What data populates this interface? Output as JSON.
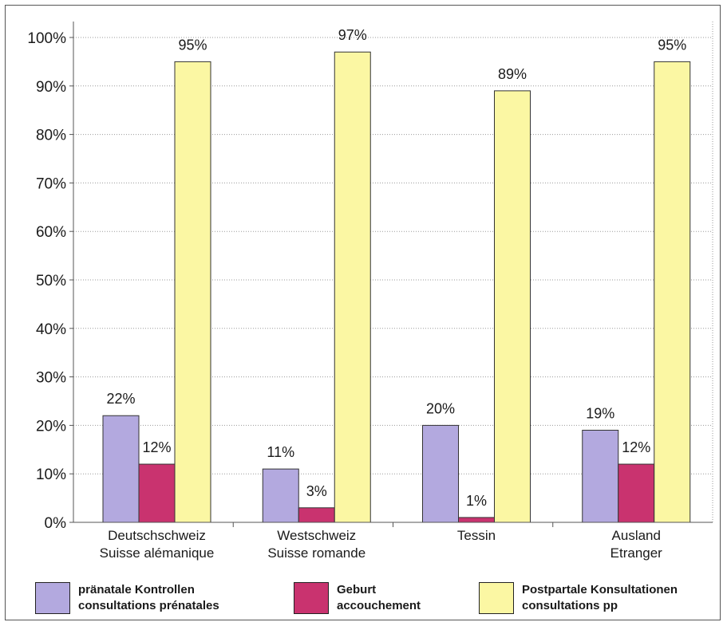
{
  "colors": {
    "pranatal": "#b3a9df",
    "geburt": "#c9336f",
    "postpartal": "#fbf7a3",
    "grid": "#9a9a9a"
  },
  "chart_data": {
    "type": "bar",
    "categories": [
      [
        "Deutschschweiz",
        "Suisse alémanique"
      ],
      [
        "Westschweiz",
        "Suisse romande"
      ],
      [
        "Tessin"
      ],
      [
        "Ausland",
        "Etranger"
      ]
    ],
    "series": [
      {
        "name": "pränatale Kontrollen / consultations prénatales",
        "values": [
          22,
          11,
          20,
          19
        ],
        "labels": [
          "22%",
          "11%",
          "20%",
          "19%"
        ]
      },
      {
        "name": "Geburt / accouchement",
        "values": [
          12,
          3,
          1,
          12
        ],
        "labels": [
          "12%",
          "3%",
          "1%",
          "12%"
        ]
      },
      {
        "name": "Postpartale Konsultationen / consultations pp",
        "values": [
          95,
          97,
          89,
          95
        ],
        "labels": [
          "95%",
          "97%",
          "89%",
          "95%"
        ]
      }
    ],
    "yticks": [
      "0%",
      "10%",
      "20%",
      "30%",
      "40%",
      "50%",
      "60%",
      "70%",
      "80%",
      "90%",
      "100%"
    ],
    "ylim": [
      0,
      100
    ],
    "grid": true,
    "legend_placement": "bottom"
  },
  "legend": [
    {
      "line1": "pränatale Kontrollen",
      "line2": "consultations prénatales"
    },
    {
      "line1": "Geburt",
      "line2": "accouchement"
    },
    {
      "line1": "Postpartale Konsultationen",
      "line2": "consultations pp"
    }
  ]
}
